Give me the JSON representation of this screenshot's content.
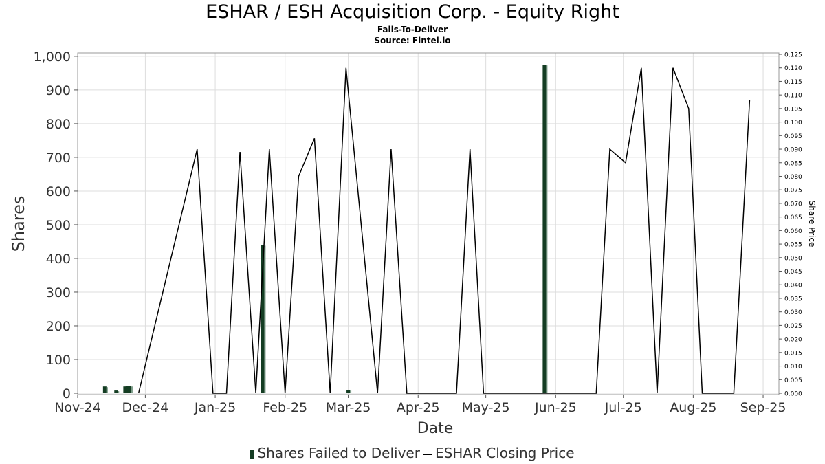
{
  "title": "ESHAR / ESH Acquisition Corp. - Equity Right",
  "subtitle": "Fails-To-Deliver",
  "source": "Source: Fintel.io",
  "chart_data": {
    "type": "bar+line",
    "xlabel": "Date",
    "ylabel": "Shares",
    "y2label": "Share Price",
    "x_range": [
      "2024-11-01",
      "2025-09-08"
    ],
    "ylim": [
      0,
      1010
    ],
    "y2lim": [
      0,
      0.125
    ],
    "grid": true,
    "x_ticks": [
      {
        "date": "2024-11-01",
        "label": "Nov-24"
      },
      {
        "date": "2024-12-01",
        "label": "Dec-24"
      },
      {
        "date": "2025-01-01",
        "label": "Jan-25"
      },
      {
        "date": "2025-02-01",
        "label": "Feb-25"
      },
      {
        "date": "2025-03-01",
        "label": "Mar-25"
      },
      {
        "date": "2025-04-01",
        "label": "Apr-25"
      },
      {
        "date": "2025-05-01",
        "label": "May-25"
      },
      {
        "date": "2025-06-01",
        "label": "Jun-25"
      },
      {
        "date": "2025-07-01",
        "label": "Jul-25"
      },
      {
        "date": "2025-08-01",
        "label": "Aug-25"
      },
      {
        "date": "2025-09-01",
        "label": "Sep-25"
      }
    ],
    "y_ticks": [
      0,
      100,
      200,
      300,
      400,
      500,
      600,
      700,
      800,
      900,
      1000
    ],
    "y_tick_labels": [
      "0",
      "100",
      "200",
      "300",
      "400",
      "500",
      "600",
      "700",
      "800",
      "900",
      "1,000"
    ],
    "y2_ticks": [
      0,
      0.005,
      0.01,
      0.015,
      0.02,
      0.025,
      0.03,
      0.035,
      0.04,
      0.045,
      0.05,
      0.055,
      0.06,
      0.065,
      0.07,
      0.075,
      0.08,
      0.085,
      0.09,
      0.095,
      0.1,
      0.105,
      0.11,
      0.115,
      0.12,
      0.125
    ],
    "y2_tick_labels": [
      "0.000",
      "0.005",
      "0.010",
      "0.015",
      "0.020",
      "0.025",
      "0.030",
      "0.035",
      "0.040",
      "0.045",
      "0.050",
      "0.055",
      "0.060",
      "0.065",
      "0.070",
      "0.075",
      "0.080",
      "0.085",
      "0.090",
      "0.095",
      "0.100",
      "0.105",
      "0.110",
      "0.115",
      "0.120",
      "0.125"
    ],
    "series": [
      {
        "name": "Shares Failed to Deliver",
        "type": "bar",
        "axis": "left",
        "color": "#143d23",
        "points": [
          {
            "x": "2024-11-13",
            "y": 20
          },
          {
            "x": "2024-11-18",
            "y": 8
          },
          {
            "x": "2024-11-22",
            "y": 20
          },
          {
            "x": "2024-11-23",
            "y": 22
          },
          {
            "x": "2024-11-24",
            "y": 22
          },
          {
            "x": "2025-01-22",
            "y": 440
          },
          {
            "x": "2025-03-01",
            "y": 10
          },
          {
            "x": "2025-05-27",
            "y": 975
          }
        ]
      },
      {
        "name": "ESHAR Closing Price",
        "type": "line",
        "axis": "right",
        "color": "#000000",
        "points": [
          {
            "x": "2024-11-28",
            "y": 0.0
          },
          {
            "x": "2024-12-24",
            "y": 0.09
          },
          {
            "x": "2024-12-31",
            "y": 0.0
          },
          {
            "x": "2025-01-06",
            "y": 0.0
          },
          {
            "x": "2025-01-12",
            "y": 0.089
          },
          {
            "x": "2025-01-19",
            "y": 0.0
          },
          {
            "x": "2025-01-25",
            "y": 0.09
          },
          {
            "x": "2025-02-01",
            "y": 0.0
          },
          {
            "x": "2025-02-07",
            "y": 0.08
          },
          {
            "x": "2025-02-14",
            "y": 0.094
          },
          {
            "x": "2025-02-21",
            "y": 0.0
          },
          {
            "x": "2025-02-28",
            "y": 0.12
          },
          {
            "x": "2025-03-14",
            "y": 0.0
          },
          {
            "x": "2025-03-20",
            "y": 0.09
          },
          {
            "x": "2025-03-27",
            "y": 0.0
          },
          {
            "x": "2025-04-18",
            "y": 0.0
          },
          {
            "x": "2025-04-24",
            "y": 0.09
          },
          {
            "x": "2025-04-30",
            "y": 0.0
          },
          {
            "x": "2025-05-16",
            "y": 0.0
          },
          {
            "x": "2025-06-01",
            "y": 0.0
          },
          {
            "x": "2025-06-19",
            "y": 0.0
          },
          {
            "x": "2025-06-25",
            "y": 0.09
          },
          {
            "x": "2025-07-02",
            "y": 0.085
          },
          {
            "x": "2025-07-09",
            "y": 0.12
          },
          {
            "x": "2025-07-16",
            "y": 0.0
          },
          {
            "x": "2025-07-23",
            "y": 0.12
          },
          {
            "x": "2025-07-30",
            "y": 0.105
          },
          {
            "x": "2025-08-05",
            "y": 0.0
          },
          {
            "x": "2025-08-19",
            "y": 0.0
          },
          {
            "x": "2025-08-26",
            "y": 0.108
          }
        ]
      }
    ]
  }
}
